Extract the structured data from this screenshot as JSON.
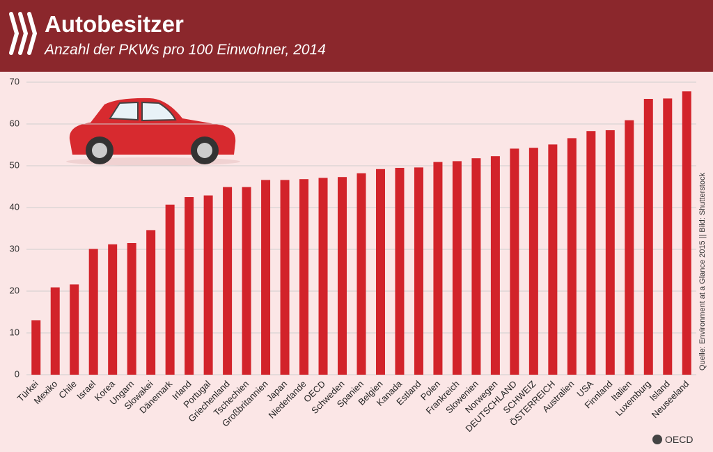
{
  "chart_data": {
    "type": "bar",
    "title": "Autobesitzer",
    "subtitle": "Anzahl der PKWs pro 100 Einwohner, 2014",
    "categories": [
      "Türkei",
      "Mexiko",
      "Chile",
      "Israel",
      "Korea",
      "Ungarn",
      "Slowakei",
      "Dänemark",
      "Irland",
      "Portugal",
      "Griechenland",
      "Tschechien",
      "Großbritannien",
      "Japan",
      "Niederlande",
      "OECD",
      "Schweden",
      "Spanien",
      "Belgien",
      "Kanada",
      "Estland",
      "Polen",
      "Frankreich",
      "Slowenien",
      "Norwegen",
      "DEUTSCHLAND",
      "SCHWEIZ",
      "ÖSTERREICH",
      "Australien",
      "USA",
      "Finnland",
      "Italien",
      "Luxemburg",
      "Island",
      "Neuseeland"
    ],
    "values": [
      13,
      20.9,
      21.6,
      30.1,
      31.2,
      31.5,
      34.6,
      40.7,
      42.5,
      42.9,
      44.9,
      44.9,
      46.6,
      46.6,
      46.8,
      47.1,
      47.3,
      48.2,
      49.2,
      49.5,
      49.6,
      50.9,
      51.1,
      51.8,
      52.3,
      54.1,
      54.3,
      55.1,
      56.6,
      58.3,
      58.5,
      60.9,
      66.0,
      66.1,
      67.8
    ],
    "color": "#d2232a",
    "ylim": [
      0,
      70
    ],
    "yticks": [
      0,
      10,
      20,
      30,
      40,
      50,
      60,
      70
    ],
    "grid": true,
    "source": "Quelle: Environment at a Glance 2015 || Bild: Shutterstock",
    "brand": "OECD"
  }
}
